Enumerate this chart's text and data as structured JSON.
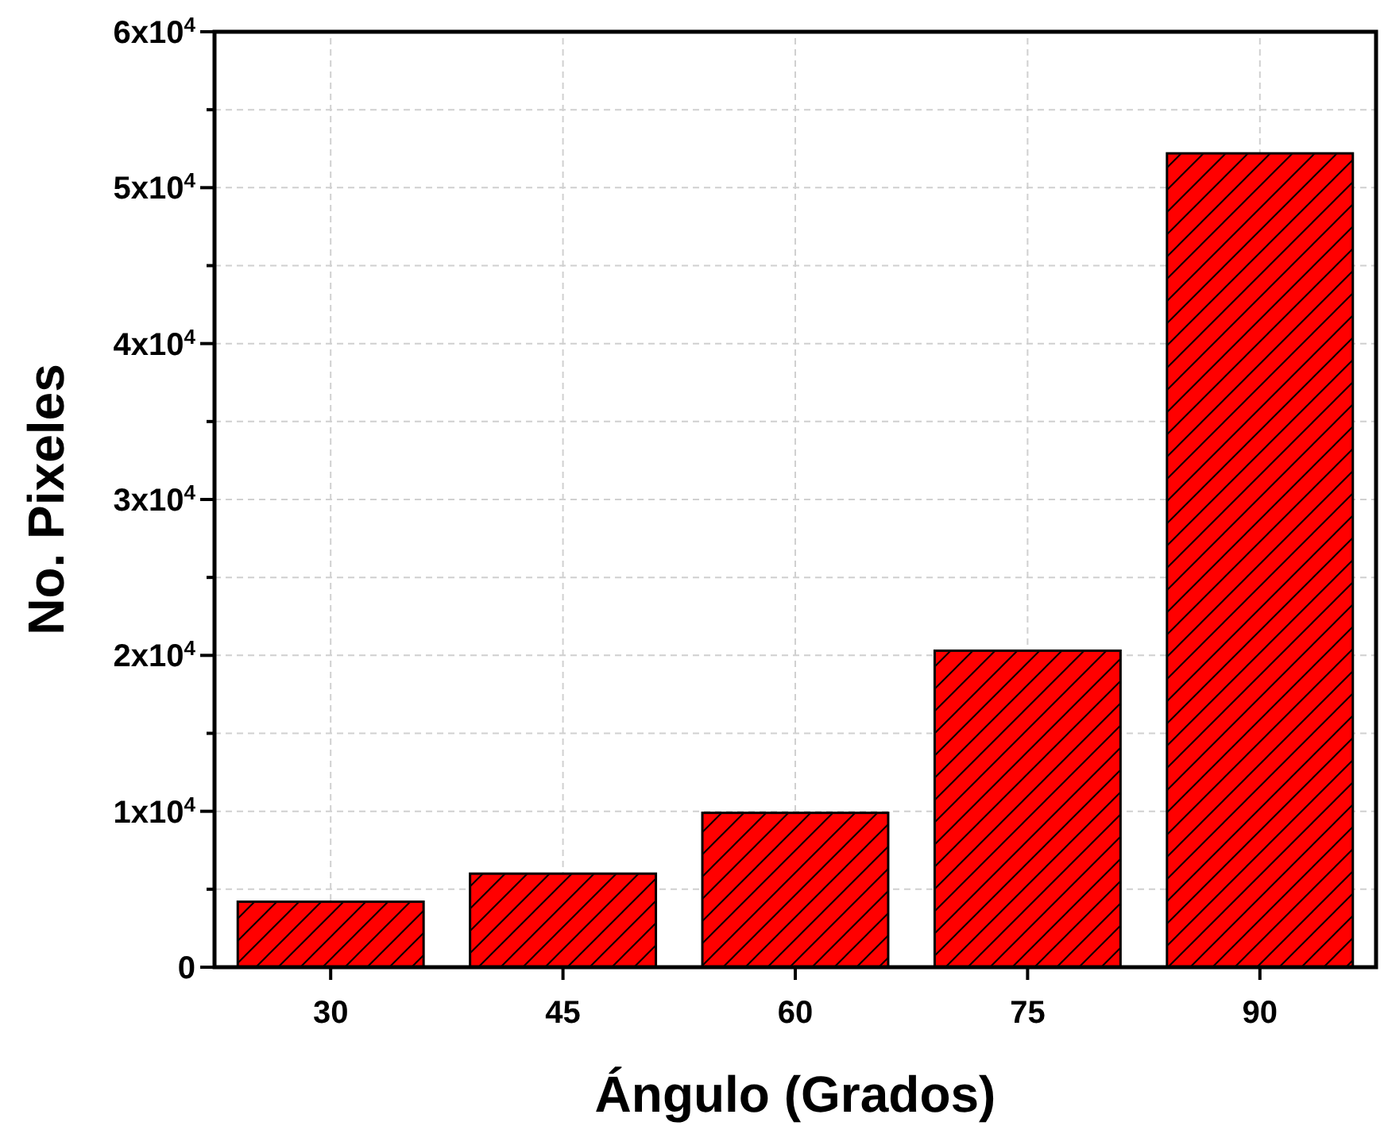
{
  "chart_data": {
    "type": "bar",
    "xlabel": "Ángulo (Grados)",
    "ylabel": "No. Pixeles",
    "categories": [
      "30",
      "45",
      "60",
      "75",
      "90"
    ],
    "values": [
      4200,
      6000,
      9900,
      20300,
      52200
    ],
    "color": "#ff0000",
    "ylim": [
      0,
      60000
    ],
    "yticks": [
      0,
      {
        "value": 5000,
        "label": null
      },
      {
        "value": 10000,
        "label": "1x10$^{4}$"
      },
      {
        "value": 15000,
        "label": null
      },
      {
        "value": 20000,
        "label": "2x10$^{4}$"
      },
      {
        "value": 25000,
        "label": null
      },
      {
        "value": 30000,
        "label": "3x10$^{4}$"
      },
      {
        "value": 35000,
        "label": null
      },
      {
        "value": 40000,
        "label": "4x10$^{4}$"
      },
      {
        "value": 45000,
        "label": null
      },
      {
        "value": 50000,
        "label": "5x10$^{4}$"
      },
      {
        "value": 55000,
        "label": null
      },
      {
        "value": 60000,
        "label": "6x10$^{4}$"
      }
    ],
    "grid": true
  }
}
